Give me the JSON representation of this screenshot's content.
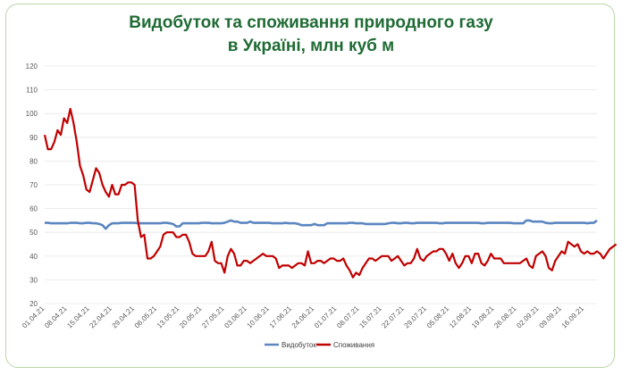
{
  "colors": {
    "title": "#1f6b34",
    "border": "#b9d7a6",
    "production": "#5b86c0",
    "consumption": "#c00000",
    "grid": "#e6e6e6"
  },
  "chart_data": {
    "type": "line",
    "title_line1": "Видобуток та споживання природного газу",
    "title_line2": "в Україні, млн куб м",
    "ylim": [
      20,
      120
    ],
    "yticks": [
      "120",
      "110",
      "100",
      "90",
      "80",
      "70",
      "60",
      "50",
      "40",
      "30",
      "20"
    ],
    "grid": true,
    "legend_position": "bottom",
    "xtick_labels": [
      "01.04.21",
      "08.04.21",
      "15.04.21",
      "22.04.21",
      "29.04.21",
      "06.05.21",
      "13.05.21",
      "20.05.21",
      "27.05.21",
      "03.06.21",
      "10.06.21",
      "17.06.21",
      "24.06.21",
      "01.07.21",
      "08.07.21",
      "15.07.21",
      "22.07.21",
      "29.07.21",
      "05.08.21",
      "12.08.21",
      "19.08.21",
      "26.08.21",
      "02.09.21",
      "09.09.21",
      "16.09.21"
    ],
    "start_date": "2021-04-01",
    "series": [
      {
        "name": "Видобуток",
        "color": "#5b86c0",
        "values": [
          54,
          54,
          53.8,
          53.8,
          53.8,
          53.8,
          53.8,
          53.8,
          54,
          54,
          54,
          53.8,
          53.8,
          54,
          54,
          53.8,
          53.8,
          53.5,
          53,
          51.5,
          53,
          53.8,
          53.8,
          53.8,
          54,
          54,
          54,
          54,
          54,
          53.8,
          53.8,
          53.8,
          53.8,
          53.8,
          53.8,
          53.8,
          53.8,
          54,
          54,
          53.8,
          53.5,
          52.5,
          52.5,
          53.8,
          53.8,
          53.8,
          53.8,
          53.8,
          53.8,
          54,
          54,
          54,
          53.8,
          53.8,
          53.8,
          53.8,
          54,
          54.5,
          55,
          54.5,
          54.5,
          54,
          54,
          54,
          54.5,
          54,
          54,
          54,
          54,
          54,
          54,
          53.8,
          53.8,
          53.8,
          53.8,
          54,
          53.8,
          53.8,
          53.8,
          53.5,
          53,
          53,
          53,
          53,
          53.5,
          53,
          53,
          53,
          53.8,
          53.8,
          53.8,
          53.8,
          53.8,
          53.8,
          53.8,
          54,
          54,
          53.8,
          53.8,
          53.8,
          53.5,
          53.5,
          53.5,
          53.5,
          53.5,
          53.5,
          53.5,
          53.8,
          54,
          54,
          53.8,
          53.8,
          54,
          54,
          53.8,
          53.8,
          54,
          54,
          54,
          54,
          54,
          54,
          54,
          53.8,
          53.8,
          54,
          54,
          54,
          54,
          54,
          54,
          54,
          54,
          54,
          54,
          54,
          53.8,
          53.8,
          54,
          54,
          54,
          54,
          54,
          54,
          54,
          54,
          53.8,
          53.8,
          53.8,
          53.8,
          55,
          55,
          54.5,
          54.5,
          54.5,
          54.5,
          54,
          53.8,
          53.8,
          54,
          54,
          54,
          54,
          54,
          54,
          54,
          54,
          54,
          54,
          53.8,
          54,
          54,
          55
        ]
      },
      {
        "name": "Споживання",
        "color": "#c00000",
        "values": [
          91,
          85,
          85,
          88,
          93,
          91,
          98,
          96,
          102,
          96,
          88,
          78,
          74,
          68,
          67,
          72,
          77,
          75,
          70,
          67,
          65,
          70,
          66,
          66,
          70,
          70,
          71,
          71,
          70,
          55,
          48,
          49,
          39,
          39,
          40,
          42,
          44,
          49,
          50,
          50,
          50,
          48,
          48,
          49,
          49,
          46,
          41,
          40,
          40,
          40,
          40,
          42,
          46,
          38,
          37,
          37,
          33,
          40,
          43,
          41,
          36,
          36,
          38,
          38,
          37,
          38,
          39,
          40,
          41,
          40,
          40,
          40,
          39,
          35,
          36,
          36,
          36,
          35,
          36,
          37,
          37,
          36,
          42,
          37,
          37,
          38,
          38,
          37,
          38,
          39,
          39,
          38,
          38,
          39,
          36,
          34,
          31,
          33,
          32,
          35,
          37,
          39,
          39,
          38,
          39,
          40,
          40,
          40,
          38,
          39,
          40,
          38,
          36,
          37,
          37,
          39,
          43,
          39,
          38,
          40,
          41,
          42,
          42,
          43,
          43,
          41,
          38,
          41,
          37,
          35,
          37,
          40,
          40,
          37,
          41,
          41,
          37,
          36,
          38,
          41,
          39,
          39,
          39,
          37,
          37,
          37,
          37,
          37,
          37,
          38,
          39,
          36,
          35,
          40,
          41,
          42,
          40,
          35,
          34,
          38,
          40,
          42,
          41,
          46,
          45,
          44,
          45,
          42,
          41,
          42,
          41,
          41,
          42,
          41,
          39,
          41,
          43,
          44,
          45
        ]
      }
    ]
  }
}
